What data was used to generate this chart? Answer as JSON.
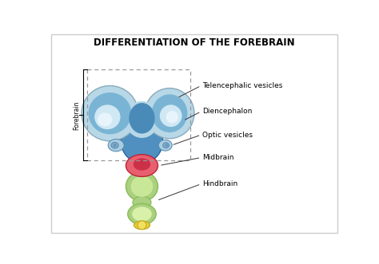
{
  "title": "DIFFERENTIATION OF THE FOREBRAIN",
  "title_fontsize": 8.5,
  "labels": {
    "telencephalic": "Telencephalic vesicles",
    "diencephalon": "Diencephalon",
    "optic": "Optic vesicles",
    "midbrain": "Midbrain",
    "hindbrain": "Hindbrain",
    "forebrain": "Forebrain"
  },
  "colors": {
    "telen_pale": "#b8d8e8",
    "telen_mid": "#7ab4d4",
    "telen_dark": "#4a8ab8",
    "telen_inner_light": "#d0e8f4",
    "telen_cavity": "#e8f4fc",
    "diencephalon": "#5090c0",
    "optic_pale": "#a8cce0",
    "optic_inner": "#88aac8",
    "midbrain_outer": "#e86070",
    "midbrain_inner": "#cc3048",
    "hind_outer": "#aad080",
    "hind_inner": "#c8e898",
    "hind_light": "#d8f0a8",
    "yellow_tip": "#e8c830",
    "yellow_ring": "#f0e060",
    "bg": "#ffffff",
    "border": "#cccccc"
  }
}
